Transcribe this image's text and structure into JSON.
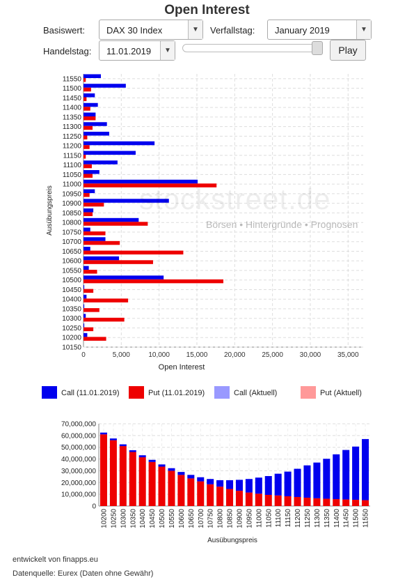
{
  "header": {
    "title": "Open Interest"
  },
  "controls": {
    "basiswert_label": "Basiswert:",
    "basiswert_value": "DAX 30 Index",
    "verfallstag_label": "Verfallstag:",
    "verfallstag_value": "January 2019",
    "handelstag_label": "Handelstag:",
    "handelstag_value": "11.01.2019",
    "play_label": "Play",
    "slider_position": 1.0
  },
  "watermark": {
    "brand": "stockstreet.de",
    "tagline": "Börsen • Hintergründe • Prognosen"
  },
  "legend": [
    {
      "label": "Call (11.01.2019)",
      "color": "#0000ee"
    },
    {
      "label": "Put (11.01.2019)",
      "color": "#ee0000"
    },
    {
      "label": "Call (Aktuell)",
      "color": "#9999ff"
    },
    {
      "label": "Put (Aktuell)",
      "color": "#ff9999"
    }
  ],
  "footer": {
    "developer": "entwickelt von finapps.eu",
    "source": "Datenquelle: Eurex (Daten ohne Gewähr)"
  },
  "chart_data": [
    {
      "type": "bar",
      "orientation": "horizontal",
      "ylabel": "Ausübungspreis",
      "xlabel": "Open Interest",
      "xlim": [
        0,
        37000
      ],
      "xticks": [
        "0",
        "5,000",
        "10,000",
        "15,000",
        "20,000",
        "25,000",
        "30,000",
        "35,000"
      ],
      "grid": true,
      "categories": [
        "10150",
        "10200",
        "10250",
        "10300",
        "10350",
        "10400",
        "10450",
        "10500",
        "10550",
        "10600",
        "10650",
        "10700",
        "10750",
        "10800",
        "10850",
        "10900",
        "10950",
        "11000",
        "11050",
        "11100",
        "11150",
        "11200",
        "11250",
        "11300",
        "11350",
        "11400",
        "11450",
        "11500",
        "11550"
      ],
      "series": [
        {
          "name": "Call (11.01.2019)",
          "color": "#0000ee",
          "values": [
            0,
            500,
            100,
            300,
            100,
            400,
            100,
            10600,
            700,
            4700,
            900,
            2900,
            900,
            7300,
            1300,
            11300,
            1500,
            15100,
            2100,
            4500,
            6900,
            9400,
            3400,
            3100,
            1600,
            1900,
            1500,
            5600,
            2300
          ]
        },
        {
          "name": "Put (11.01.2019)",
          "color": "#ee0000",
          "values": [
            0,
            3000,
            1300,
            5400,
            2100,
            5900,
            1300,
            18500,
            1800,
            9200,
            13200,
            4800,
            2900,
            8500,
            1200,
            2700,
            800,
            17600,
            1200,
            1100,
            300,
            800,
            500,
            1200,
            1600,
            900,
            400,
            1000,
            300
          ]
        }
      ]
    },
    {
      "type": "bar",
      "stacked": true,
      "ylabel": "",
      "xlabel": "Ausübungspreis",
      "ylim": [
        0,
        70000000
      ],
      "yticks": [
        "0",
        "10,000,000",
        "20,000,000",
        "30,000,000",
        "40,000,000",
        "50,000,000",
        "60,000,000",
        "70,000,000"
      ],
      "grid": true,
      "categories": [
        "10200",
        "10250",
        "10300",
        "10350",
        "10400",
        "10450",
        "10500",
        "10550",
        "10600",
        "10650",
        "10700",
        "10750",
        "10800",
        "10850",
        "10900",
        "10950",
        "11000",
        "11050",
        "11100",
        "11150",
        "11200",
        "11250",
        "11300",
        "11350",
        "11400",
        "11450",
        "11500",
        "11550"
      ],
      "series": [
        {
          "name": "Put",
          "color": "#ee0000",
          "values": [
            61000000,
            56000000,
            51000000,
            46000000,
            41500000,
            37500000,
            33500000,
            30000000,
            26500000,
            23500000,
            21000000,
            18500000,
            16500000,
            14500000,
            13000000,
            11500000,
            10500000,
            9500000,
            9000000,
            8300000,
            7700000,
            7100000,
            6600000,
            6200000,
            5900000,
            5600000,
            5300000,
            5000000
          ]
        },
        {
          "name": "Call",
          "color": "#0000ee",
          "values": [
            1500000,
            1500000,
            1500000,
            1500000,
            1700000,
            1800000,
            1900000,
            2200000,
            2500000,
            3000000,
            3500000,
            4500000,
            5500000,
            7500000,
            9300000,
            11500000,
            13700000,
            16000000,
            18500000,
            21000000,
            24000000,
            27500000,
            30400000,
            34000000,
            38100000,
            42100000,
            45300000,
            52000000
          ]
        }
      ]
    }
  ]
}
